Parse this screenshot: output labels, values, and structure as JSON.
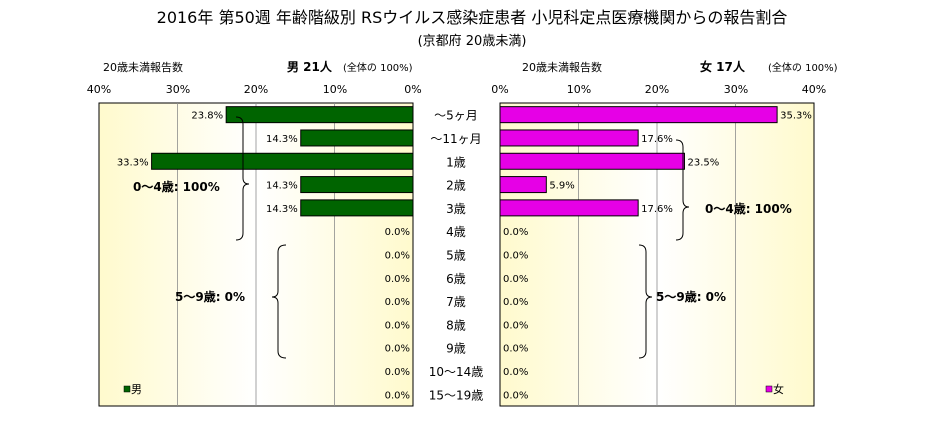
{
  "title": "2016年 第50週 年齢階級別 RSウイルス感染症患者 小児科定点医療機関からの報告割合",
  "subtitle": "(京都府 20歳未満)",
  "male_panel": {
    "header_left": "20歳未満報告数",
    "header_count": "男 21人",
    "header_total": "(全体の 100%)",
    "axis_ticks": [
      "40%",
      "30%",
      "20%",
      "10%",
      "0%"
    ],
    "legend": "男",
    "brace_0_4": "0～4歳: 100%",
    "brace_5_9": "5～9歳: 0%"
  },
  "female_panel": {
    "header_left": "20歳未満報告数",
    "header_count": "女 17人",
    "header_total": "(全体の 100%)",
    "axis_ticks": [
      "0%",
      "10%",
      "20%",
      "30%",
      "40%"
    ],
    "legend": "女",
    "brace_0_4": "0～4歳: 100%",
    "brace_5_9": "5～9歳: 0%"
  },
  "colors": {
    "male_bar": "#006400",
    "female_bar": "#e600e6",
    "plot_bg_edge": "#fffacd",
    "plot_bg_center": "#ffffff"
  },
  "chart_data": [
    {
      "type": "bar",
      "orientation": "horizontal",
      "direction": "right-to-left",
      "categories": [
        "～5ヶ月",
        "～11ヶ月",
        "1歳",
        "2歳",
        "3歳",
        "4歳",
        "5歳",
        "6歳",
        "7歳",
        "8歳",
        "9歳",
        "10～14歳",
        "15～19歳"
      ],
      "series": [
        {
          "name": "男",
          "values": [
            23.8,
            14.3,
            33.3,
            14.3,
            14.3,
            0.0,
            0.0,
            0.0,
            0.0,
            0.0,
            0.0,
            0.0,
            0.0
          ]
        }
      ],
      "value_labels": [
        "23.8%",
        "14.3%",
        "33.3%",
        "14.3%",
        "14.3%",
        "0.0%",
        "0.0%",
        "0.0%",
        "0.0%",
        "0.0%",
        "0.0%",
        "0.0%",
        "0.0%"
      ],
      "xlim": [
        0,
        40
      ],
      "grid": true,
      "legend_position": "bottom-left"
    },
    {
      "type": "bar",
      "orientation": "horizontal",
      "direction": "left-to-right",
      "categories": [
        "～5ヶ月",
        "～11ヶ月",
        "1歳",
        "2歳",
        "3歳",
        "4歳",
        "5歳",
        "6歳",
        "7歳",
        "8歳",
        "9歳",
        "10～14歳",
        "15～19歳"
      ],
      "series": [
        {
          "name": "女",
          "values": [
            35.3,
            17.6,
            23.5,
            5.9,
            17.6,
            0.0,
            0.0,
            0.0,
            0.0,
            0.0,
            0.0,
            0.0,
            0.0
          ]
        }
      ],
      "value_labels": [
        "35.3%",
        "17.6%",
        "23.5%",
        "5.9%",
        "17.6%",
        "0.0%",
        "0.0%",
        "0.0%",
        "0.0%",
        "0.0%",
        "0.0%",
        "0.0%",
        "0.0%"
      ],
      "xlim": [
        0,
        40
      ],
      "grid": true,
      "legend_position": "bottom-right"
    }
  ]
}
